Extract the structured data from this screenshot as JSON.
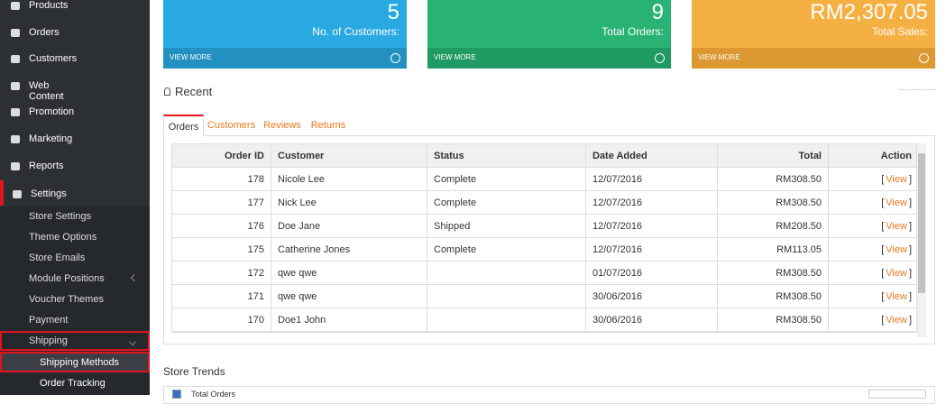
{
  "sidebar": {
    "items": [
      "Products",
      "Orders",
      "Customers",
      "Web Content",
      "Promotion",
      "Marketing",
      "Reports",
      "Settings"
    ],
    "submenu": [
      "Store Settings",
      "Theme Options",
      "Store Emails",
      "Module Positions",
      "Voucher Themes",
      "Payment",
      "Shipping"
    ],
    "subsubmenu": [
      "Shipping Methods",
      "Order Tracking"
    ]
  },
  "tiles": [
    {
      "value": "5",
      "label": "No. of Customers:",
      "link": "VIEW MORE"
    },
    {
      "value": "9",
      "label": "Total Orders:",
      "link": "VIEW MORE"
    },
    {
      "value": "RM2,307.05",
      "label": "Total Sales:",
      "link": "VIEW MORE"
    }
  ],
  "recent": {
    "title": "Recent",
    "tabs": [
      "Orders",
      "Customers",
      "Reviews",
      "Returns"
    ],
    "table": {
      "headers": [
        "Order ID",
        "Customer",
        "Status",
        "Date Added",
        "Total",
        "Action"
      ],
      "action_brackets": [
        "[",
        "]"
      ],
      "rows": [
        [
          "178",
          "Nicole Lee",
          "Complete",
          "12/07/2016",
          "RM308.50",
          "View"
        ],
        [
          "177",
          "Nick Lee",
          "Complete",
          "12/07/2016",
          "RM308.50",
          "View"
        ],
        [
          "176",
          "Doe Jane",
          "Shipped",
          "12/07/2016",
          "RM208.50",
          "View"
        ],
        [
          "175",
          "Catherine Jones",
          "Complete",
          "12/07/2016",
          "RM113.05",
          "View"
        ],
        [
          "172",
          "qwe qwe",
          "",
          "01/07/2016",
          "RM308.50",
          "View"
        ],
        [
          "171",
          "qwe qwe",
          "",
          "30/06/2016",
          "RM308.50",
          "View"
        ],
        [
          "170",
          "Doe1 John",
          "",
          "30/06/2016",
          "RM308.50",
          "View"
        ]
      ]
    }
  },
  "trends": {
    "title": "Store Trends",
    "legend": "Total Orders"
  }
}
